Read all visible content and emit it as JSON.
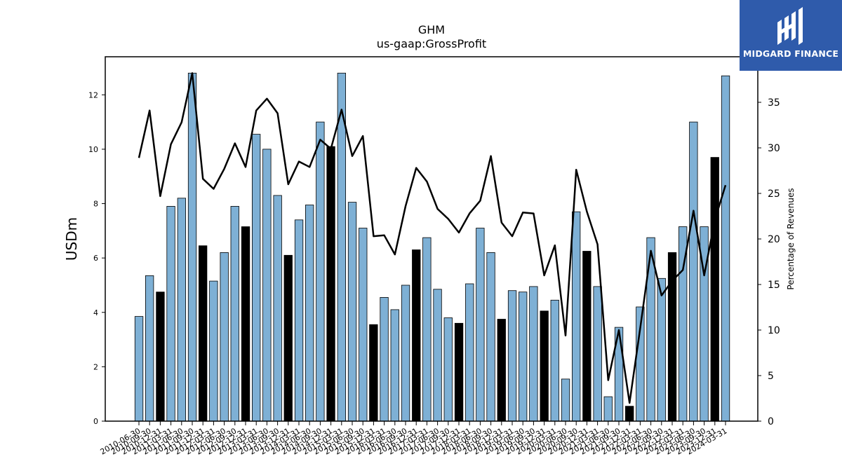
{
  "chart_data": {
    "type": "bar+line",
    "title": "GHM",
    "subtitle": "us-gaap:GrossProfit",
    "ylabel": "USDm",
    "y2label": "Percentage of Revenues",
    "ylim": [
      0,
      13.4
    ],
    "y2lim": [
      0,
      40.0
    ],
    "yticks": [
      "0",
      "2",
      "4",
      "6",
      "8",
      "10",
      "12"
    ],
    "y2ticks": [
      "0",
      "5",
      "10",
      "15",
      "20",
      "25",
      "30",
      "35"
    ],
    "categories": [
      "2010-06-30",
      "2010-09-30",
      "2010-12-31",
      "2011-03-31",
      "2011-06-30",
      "2011-09-30",
      "2011-12-31",
      "2012-03-31",
      "2012-06-30",
      "2012-09-30",
      "2012-12-31",
      "2013-03-31",
      "2013-06-30",
      "2013-09-30",
      "2013-12-31",
      "2014-03-31",
      "2014-06-30",
      "2014-09-30",
      "2014-12-31",
      "2015-03-31",
      "2015-06-30",
      "2015-09-30",
      "2015-12-31",
      "2016-03-31",
      "2016-06-30",
      "2016-09-30",
      "2016-12-31",
      "2017-03-31",
      "2017-06-30",
      "2017-09-30",
      "2017-12-31",
      "2018-03-31",
      "2018-06-30",
      "2018-09-30",
      "2018-12-31",
      "2019-03-31",
      "2019-06-30",
      "2019-09-30",
      "2019-12-31",
      "2020-03-31",
      "2020-06-30",
      "2020-09-30",
      "2020-12-31",
      "2021-03-31",
      "2021-06-30",
      "2021-09-30",
      "2021-12-31",
      "2022-03-31",
      "2022-06-30",
      "2022-09-30",
      "2022-12-31",
      "2023-03-31",
      "2023-06-30",
      "2023-09-30",
      "2023-12-31",
      "2024-03-31"
    ],
    "values": [
      3.85,
      5.35,
      4.75,
      7.9,
      8.2,
      12.8,
      6.45,
      5.15,
      6.2,
      7.9,
      7.15,
      10.55,
      10.0,
      8.3,
      6.1,
      7.4,
      7.95,
      11.0,
      10.1,
      12.8,
      8.05,
      7.1,
      3.55,
      4.55,
      4.1,
      5.0,
      6.3,
      6.75,
      4.85,
      3.8,
      3.6,
      5.05,
      7.1,
      6.2,
      3.75,
      4.8,
      4.75,
      4.95,
      4.05,
      4.45,
      1.55,
      7.7,
      6.25,
      4.95,
      0.9,
      3.45,
      0.55,
      4.2,
      6.75,
      5.25,
      6.2,
      7.15,
      11.0,
      7.15,
      9.7,
      12.7
    ],
    "highlight": [
      false,
      false,
      true,
      false,
      false,
      false,
      true,
      false,
      false,
      false,
      true,
      false,
      false,
      false,
      true,
      false,
      false,
      false,
      true,
      false,
      false,
      false,
      true,
      false,
      false,
      false,
      true,
      false,
      false,
      false,
      true,
      false,
      false,
      false,
      true,
      false,
      false,
      false,
      true,
      false,
      false,
      false,
      true,
      false,
      false,
      false,
      true,
      false,
      false,
      false,
      true,
      false,
      false,
      false,
      true,
      false
    ],
    "line_values": [
      28.9,
      34.1,
      24.7,
      30.4,
      32.8,
      38.2,
      26.6,
      25.5,
      27.7,
      30.5,
      27.9,
      34.1,
      35.4,
      33.8,
      26.0,
      28.5,
      27.9,
      30.9,
      29.9,
      34.2,
      29.1,
      31.3,
      20.3,
      20.4,
      18.3,
      23.6,
      27.8,
      26.3,
      23.3,
      22.2,
      20.7,
      22.8,
      24.2,
      29.1,
      21.8,
      20.3,
      22.9,
      22.8,
      16.0,
      19.3,
      9.4,
      27.6,
      23.0,
      19.4,
      4.5,
      10.0,
      2.0,
      10.2,
      18.7,
      13.8,
      15.4,
      16.6,
      23.1,
      16.0,
      22.1,
      25.9
    ],
    "bar_color": "#7eb0d5",
    "highlight_color": "#000000",
    "line_color": "#000000"
  },
  "logo": {
    "text": "MIDGARD FINANCE",
    "bg_color": "#2f5bab"
  }
}
